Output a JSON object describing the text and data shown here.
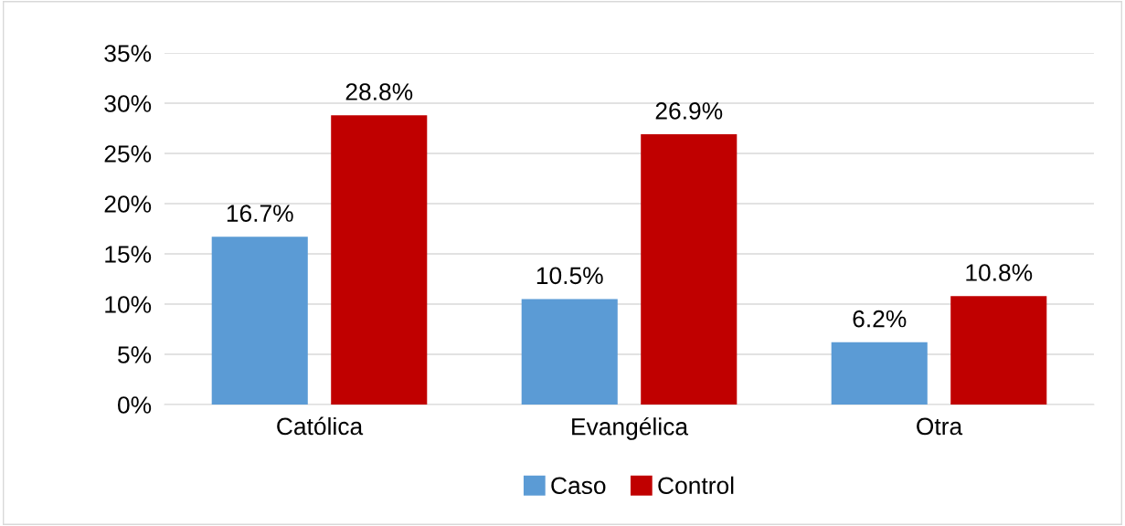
{
  "chart_data": {
    "type": "bar",
    "categories": [
      "Católica",
      "Evangélica",
      "Otra"
    ],
    "series": [
      {
        "name": "Caso",
        "color": "#5b9bd5",
        "values": [
          16.7,
          10.5,
          6.2
        ],
        "value_labels": [
          "16.7%",
          "10.5%",
          "6.2%"
        ]
      },
      {
        "name": "Control",
        "color": "#c00000",
        "values": [
          28.8,
          26.9,
          10.8
        ],
        "value_labels": [
          "28.8%",
          "26.9%",
          "10.8%"
        ]
      }
    ],
    "ylim": [
      0,
      35
    ],
    "yticks": [
      {
        "value": 0,
        "label": "0%"
      },
      {
        "value": 5,
        "label": "5%"
      },
      {
        "value": 10,
        "label": "10%"
      },
      {
        "value": 15,
        "label": "15%"
      },
      {
        "value": 20,
        "label": "20%"
      },
      {
        "value": 25,
        "label": "25%"
      },
      {
        "value": 30,
        "label": "30%"
      },
      {
        "value": 35,
        "label": "35%"
      }
    ],
    "grid": "y",
    "legend": "bottom"
  }
}
